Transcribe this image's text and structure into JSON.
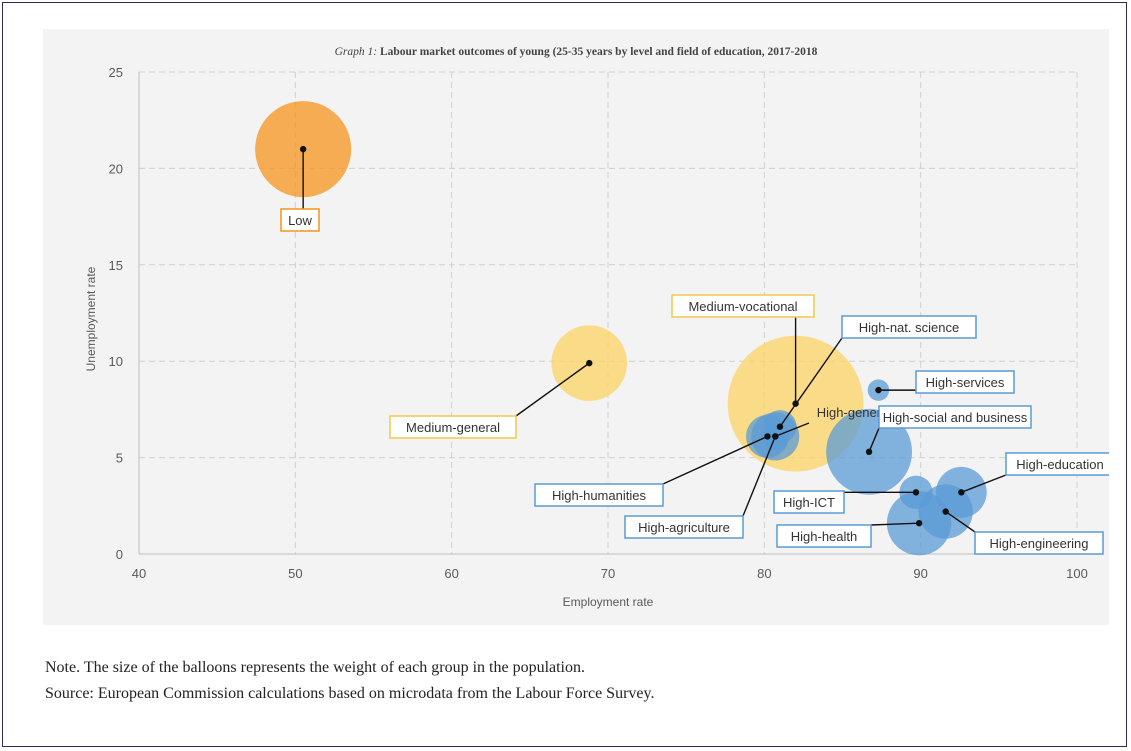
{
  "chart_data": {
    "type": "scatter",
    "title_prefix": "Graph 1:",
    "title": "Labour market outcomes of young (25-35 years by level and field of education, 2017-2018",
    "xlabel": "Employment rate",
    "ylabel": "Unemployment rate",
    "xlim": [
      40,
      100
    ],
    "ylim": [
      0,
      25
    ],
    "x_ticks": [
      40,
      50,
      60,
      70,
      80,
      90,
      100
    ],
    "y_ticks": [
      0,
      5,
      10,
      15,
      20,
      25
    ],
    "grid": true,
    "bubble_size_meaning": "weight of each group in the population",
    "points": [
      {
        "label": "Low",
        "x": 50.5,
        "y": 21.0,
        "size": 1.0,
        "color": "#f7941d"
      },
      {
        "label": "Medium-general",
        "x": 68.8,
        "y": 9.9,
        "size": 0.62,
        "color": "#fbd46d"
      },
      {
        "label": "Medium-vocational",
        "x": 82.0,
        "y": 7.8,
        "size": 2.0,
        "color": "#fbd46d"
      },
      {
        "label": "High-nat. science",
        "x": 81.0,
        "y": 6.6,
        "size": 0.12,
        "color": "#5b9bd5"
      },
      {
        "label": "High-services",
        "x": 87.3,
        "y": 8.5,
        "size": 0.05,
        "color": "#5b9bd5"
      },
      {
        "label": "High-general",
        "x": 80.7,
        "y": 6.1,
        "size": 0.25,
        "color": "#5b9bd5"
      },
      {
        "label": "High-social and business",
        "x": 86.7,
        "y": 5.3,
        "size": 0.8,
        "color": "#5b9bd5"
      },
      {
        "label": "High-humanities",
        "x": 80.2,
        "y": 6.1,
        "size": 0.2,
        "color": "#5b9bd5"
      },
      {
        "label": "High-agriculture",
        "x": 80.7,
        "y": 6.1,
        "size": 0.08,
        "color": "#5b9bd5"
      },
      {
        "label": "High-education",
        "x": 92.6,
        "y": 3.2,
        "size": 0.28,
        "color": "#5b9bd5"
      },
      {
        "label": "High-ICT",
        "x": 89.7,
        "y": 3.2,
        "size": 0.12,
        "color": "#5b9bd5"
      },
      {
        "label": "High-health",
        "x": 89.9,
        "y": 1.6,
        "size": 0.45,
        "color": "#5b9bd5"
      },
      {
        "label": "High-engineering",
        "x": 91.6,
        "y": 2.2,
        "size": 0.32,
        "color": "#5b9bd5"
      }
    ]
  },
  "notes": {
    "note": "Note. The size of the balloons represents the weight of each group in the population.",
    "source": "Source: European Commission calculations based on microdata from the Labour Force Survey."
  },
  "colors": {
    "low": "#f7941d",
    "medium": "#fbd46d",
    "high": "#5b9bd5",
    "grid": "#d0d0d0",
    "axis_text": "#595959"
  }
}
